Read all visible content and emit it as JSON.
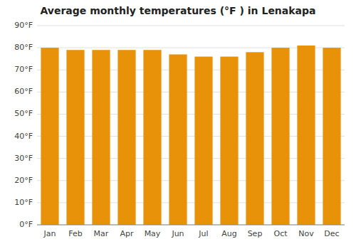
{
  "chart_data": {
    "type": "bar",
    "title": "Average monthly temperatures (°F ) in Lenakapa",
    "categories": [
      "Jan",
      "Feb",
      "Mar",
      "Apr",
      "May",
      "Jun",
      "Jul",
      "Aug",
      "Sep",
      "Oct",
      "Nov",
      "Dec"
    ],
    "values": [
      80,
      79,
      79,
      79,
      79,
      77,
      76,
      76,
      78,
      80,
      81,
      80
    ],
    "color": "#E8920A",
    "ylim": [
      0,
      90
    ],
    "yticks": [
      {
        "value": 0,
        "label": "0°F"
      },
      {
        "value": 10,
        "label": "10°F"
      },
      {
        "value": 20,
        "label": "20°F"
      },
      {
        "value": 30,
        "label": "30°F"
      },
      {
        "value": 40,
        "label": "40°F"
      },
      {
        "value": 50,
        "label": "50°F"
      },
      {
        "value": 60,
        "label": "60°F"
      },
      {
        "value": 70,
        "label": "70°F"
      },
      {
        "value": 80,
        "label": "80°F"
      },
      {
        "value": 90,
        "label": "90°F"
      }
    ],
    "grid": true
  }
}
